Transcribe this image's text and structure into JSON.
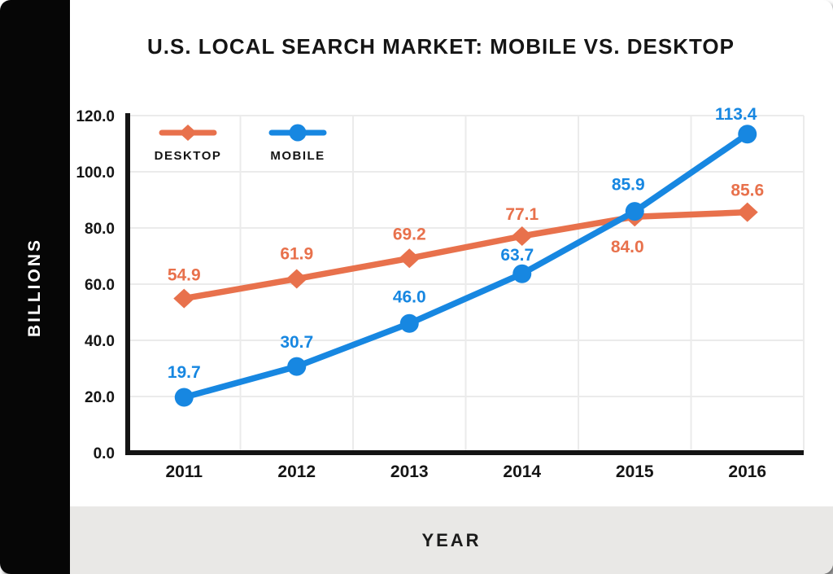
{
  "page": {
    "title": "U.S. LOCAL SEARCH MARKET: MOBILE VS. DESKTOP",
    "y_axis_label": "BILLIONS",
    "x_axis_label": "YEAR"
  },
  "colors": {
    "desktop": "#e8714c",
    "mobile": "#1787e1",
    "grid": "#ebebeb",
    "axis": "#141414",
    "text": "#151515",
    "sidebar_bg": "#060606",
    "footer_bg": "#e9e8e6",
    "background": "#ffffff"
  },
  "chart_data": {
    "type": "line",
    "title": "U.S. LOCAL SEARCH MARKET: MOBILE VS. DESKTOP",
    "xlabel": "YEAR",
    "ylabel": "BILLIONS",
    "categories": [
      "2011",
      "2012",
      "2013",
      "2014",
      "2015",
      "2016"
    ],
    "series": [
      {
        "name": "DESKTOP",
        "color": "#e8714c",
        "marker": "diamond",
        "values": [
          54.9,
          61.9,
          69.2,
          77.1,
          84.0,
          85.6
        ],
        "point_labels": [
          "54.9",
          "61.9",
          "69.2",
          "77.1",
          "84.0",
          "85.6"
        ],
        "label_offsets": [
          [
            0,
            -22
          ],
          [
            0,
            -24
          ],
          [
            0,
            -23
          ],
          [
            0,
            -20
          ],
          [
            -9,
            44
          ],
          [
            0,
            -20
          ]
        ]
      },
      {
        "name": "MOBILE",
        "color": "#1787e1",
        "marker": "circle",
        "values": [
          19.7,
          30.7,
          46.0,
          63.7,
          85.9,
          113.4
        ],
        "point_labels": [
          "19.7",
          "30.7",
          "46.0",
          "63.7",
          "85.9",
          "113.4"
        ],
        "label_offsets": [
          [
            0,
            -24
          ],
          [
            0,
            -23
          ],
          [
            0,
            -26
          ],
          [
            -6,
            -16
          ],
          [
            -8,
            -26
          ],
          [
            -14,
            -18
          ]
        ]
      }
    ],
    "ylim": [
      0,
      120
    ],
    "yticks": [
      0,
      20,
      40,
      60,
      80,
      100,
      120
    ],
    "ytick_labels": [
      "0.0",
      "20.0",
      "40.0",
      "60.0",
      "80.0",
      "100.0",
      "120.0"
    ],
    "grid": true,
    "legend_position": "inside-top-left",
    "legend": [
      "DESKTOP",
      "MOBILE"
    ]
  }
}
